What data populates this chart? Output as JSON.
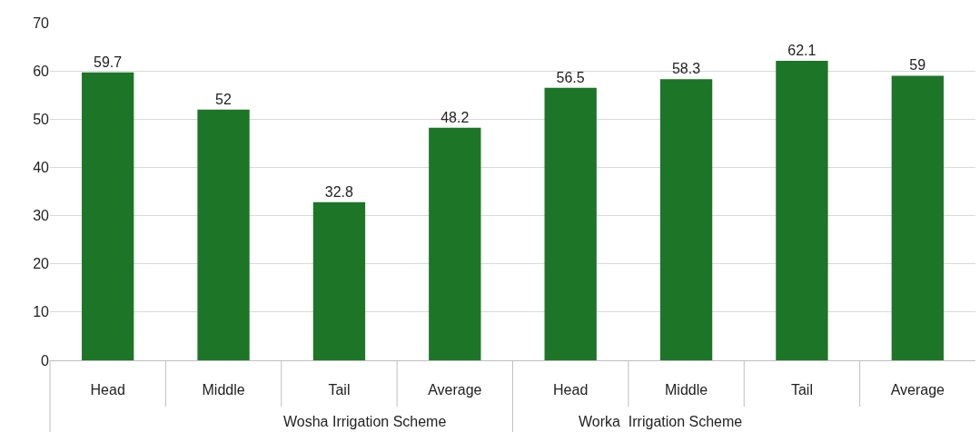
{
  "chart_data": {
    "type": "bar",
    "categories": [
      "Head",
      "Middle",
      "Tail",
      "Average",
      "Head",
      "Middle",
      "Tail",
      "Average"
    ],
    "values": [
      59.7,
      52,
      32.8,
      48.2,
      56.5,
      58.3,
      62.1,
      59
    ],
    "color": "#1d7527",
    "ylim": [
      0,
      70
    ],
    "yticks": [
      0,
      10,
      20,
      30,
      40,
      50,
      60,
      70
    ],
    "grid": "y",
    "data_labels": true,
    "annotations": [
      "Wosha Irrigation Scheme",
      "Worka  Irrigation Scheme"
    ]
  }
}
